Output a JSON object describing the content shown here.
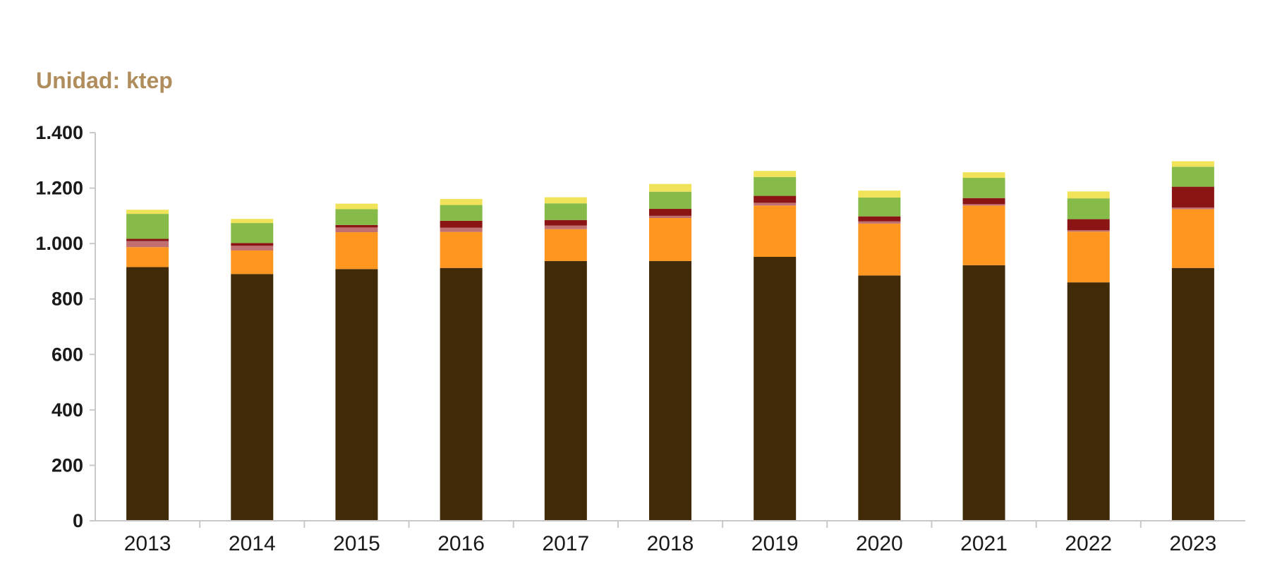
{
  "chart_data": {
    "type": "bar",
    "stacked": true,
    "unit_label": "Unidad: ktep",
    "title": "",
    "xlabel": "",
    "ylabel": "",
    "ylim": [
      0,
      1400
    ],
    "yticks": [
      0,
      200,
      400,
      600,
      800,
      1000,
      1200,
      1400
    ],
    "ytick_labels": [
      "0",
      "200",
      "400",
      "600",
      "800",
      "1.000",
      "1.200",
      "1.400"
    ],
    "categories": [
      "2013",
      "2014",
      "2015",
      "2016",
      "2017",
      "2018",
      "2019",
      "2020",
      "2021",
      "2022",
      "2023"
    ],
    "grid": false,
    "legend": "none",
    "series": [
      {
        "color": "#402a08",
        "values": [
          915,
          890,
          908,
          912,
          937,
          937,
          952,
          885,
          922,
          860,
          912
        ]
      },
      {
        "color": "#ff961f",
        "values": [
          72,
          85,
          133,
          130,
          115,
          155,
          185,
          187,
          215,
          183,
          212
        ]
      },
      {
        "color": "#c07070",
        "values": [
          22,
          17,
          17,
          15,
          13,
          8,
          10,
          8,
          5,
          5,
          6
        ]
      },
      {
        "color": "#8b1414",
        "values": [
          8,
          10,
          9,
          25,
          20,
          25,
          25,
          18,
          22,
          40,
          75
        ]
      },
      {
        "color": "#86bb4a",
        "values": [
          90,
          72,
          57,
          57,
          60,
          62,
          68,
          68,
          73,
          75,
          72
        ]
      },
      {
        "color": "#f0e35a",
        "values": [
          15,
          15,
          20,
          22,
          22,
          28,
          22,
          25,
          20,
          25,
          20
        ]
      }
    ]
  }
}
